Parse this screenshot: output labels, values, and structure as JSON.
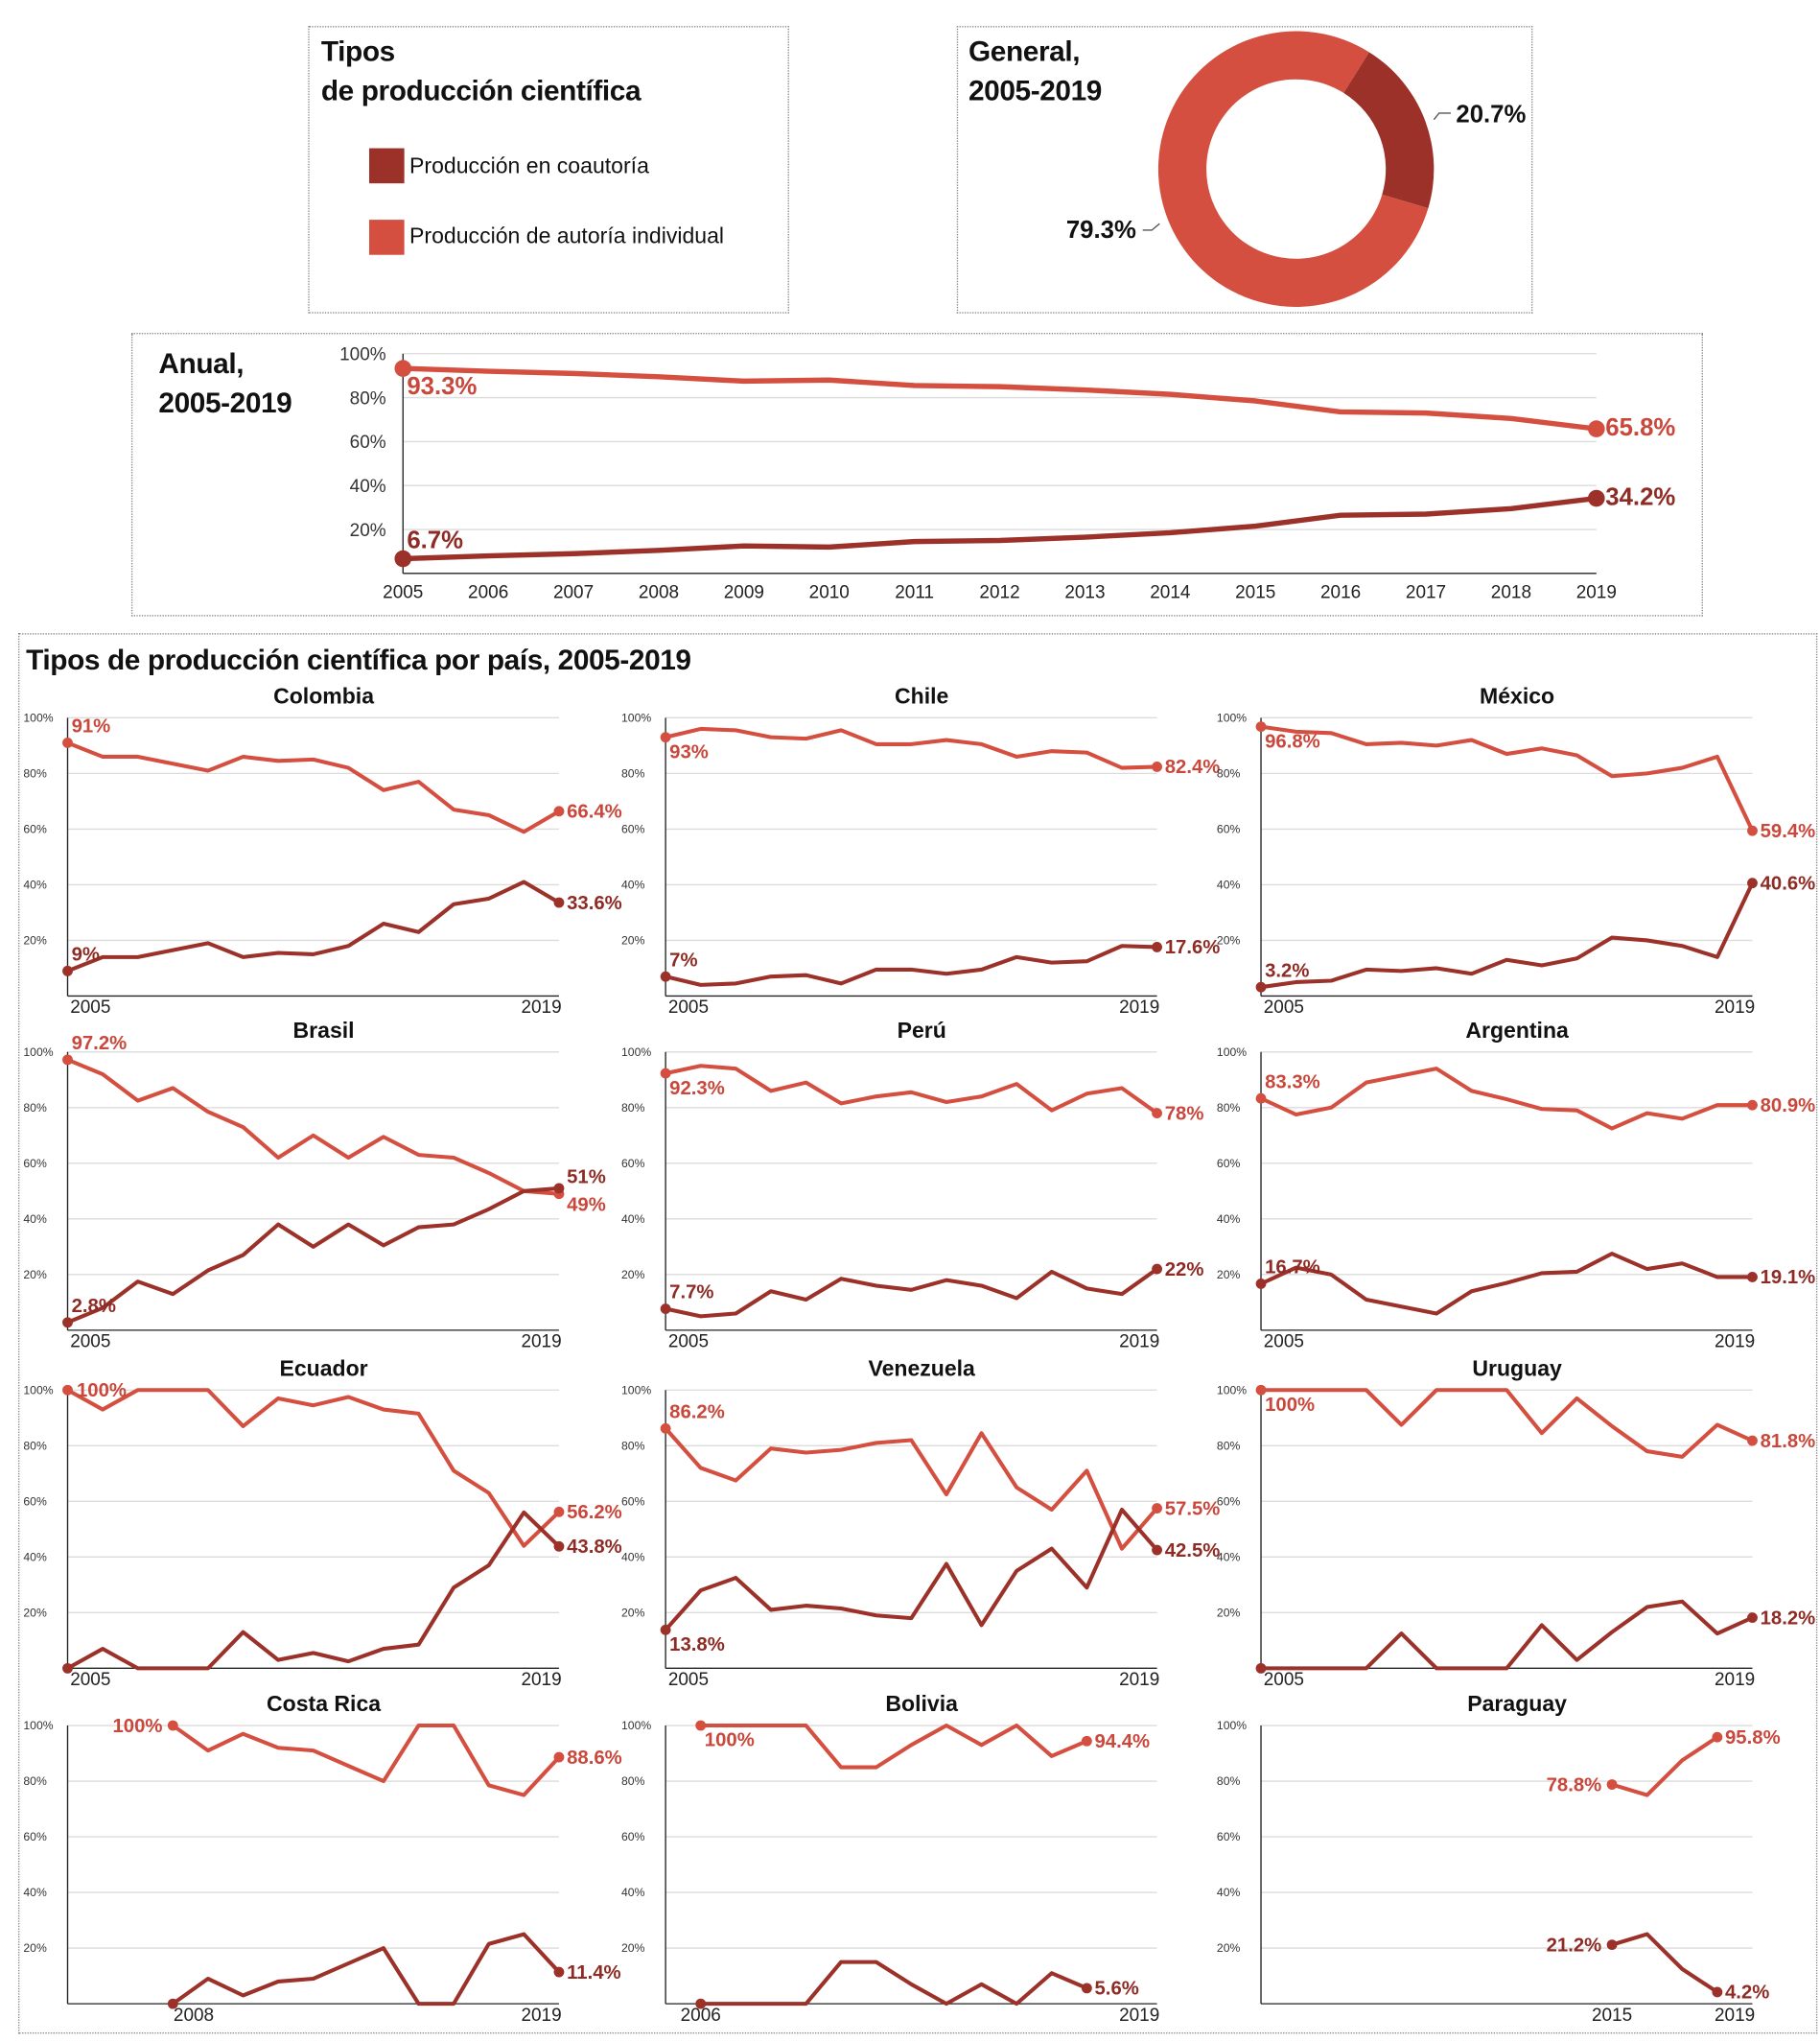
{
  "colors": {
    "coauthor": "#9b3129",
    "individual": "#d44f3f",
    "coauthor_label": "#8e2b24",
    "individual_label": "#c9473b"
  },
  "legend": {
    "title_line1": "Tipos",
    "title_line2": "de producción científica",
    "items": [
      {
        "label": "Producción en coautoría",
        "color": "#9b3129"
      },
      {
        "label": "Producción de autoría individual",
        "color": "#d44f3f"
      }
    ]
  },
  "general": {
    "title_line1": "General,",
    "title_line2": "2005-2019"
  },
  "anual": {
    "title_line1": "Anual,",
    "title_line2": "2005-2019"
  },
  "countries_title": "Tipos de producción científica por país, 2005-2019",
  "chart_data": [
    {
      "type": "pie",
      "title": "General, 2005-2019",
      "slices": [
        {
          "name": "Producción en coautoría",
          "value": 20.7,
          "label": "20.7%"
        },
        {
          "name": "Producción de autoría individual",
          "value": 79.3,
          "label": "79.3%"
        }
      ]
    },
    {
      "type": "line",
      "title": "Anual, 2005-2019",
      "x": [
        2005,
        2006,
        2007,
        2008,
        2009,
        2010,
        2011,
        2012,
        2013,
        2014,
        2015,
        2016,
        2017,
        2018,
        2019
      ],
      "x_tick_labels": [
        "2005",
        "2006",
        "2007",
        "2008",
        "2009",
        "2010",
        "2011",
        "2012",
        "2013",
        "2014",
        "2015",
        "2016",
        "2017",
        "2018",
        "2019"
      ],
      "y_tick_labels": [
        "20%",
        "40%",
        "60%",
        "80%",
        "100%"
      ],
      "ylim": [
        0,
        100
      ],
      "grid": true,
      "series": [
        {
          "name": "Producción de autoría individual",
          "values": [
            93.3,
            92,
            91,
            89.5,
            87.5,
            88,
            85.5,
            85,
            83.5,
            81.5,
            78.5,
            73.5,
            73,
            70.5,
            65.8
          ],
          "start_label": "93.3%",
          "end_label": "65.8%"
        },
        {
          "name": "Producción en coautoría",
          "values": [
            6.7,
            8,
            9,
            10.5,
            12.5,
            12,
            14.5,
            15,
            16.5,
            18.5,
            21.5,
            26.5,
            27,
            29.5,
            34.2
          ],
          "start_label": "6.7%",
          "end_label": "34.2%"
        }
      ]
    },
    {
      "type": "line",
      "title": "Colombia",
      "x": [
        2005,
        2006,
        2007,
        2008,
        2009,
        2010,
        2011,
        2012,
        2013,
        2014,
        2015,
        2016,
        2017,
        2018,
        2019
      ],
      "x_tick_labels": [
        "2005",
        "2019"
      ],
      "y_tick_labels": [
        "20%",
        "40%",
        "60%",
        "80%",
        "100%"
      ],
      "ylim": [
        0,
        100
      ],
      "series": [
        {
          "name": "Producción de autoría individual",
          "values": [
            91,
            86,
            86,
            83.5,
            81,
            86,
            84.5,
            85,
            82,
            74,
            77,
            67,
            65,
            59,
            66.4
          ],
          "start_label": "91%",
          "end_label": "66.4%"
        },
        {
          "name": "Producción en coautoría",
          "values": [
            9,
            14,
            14,
            16.5,
            19,
            14,
            15.5,
            15,
            18,
            26,
            23,
            33,
            35,
            41,
            33.6
          ],
          "start_label": "9%",
          "end_label": "33.6%"
        }
      ]
    },
    {
      "type": "line",
      "title": "Chile",
      "x": [
        2005,
        2006,
        2007,
        2008,
        2009,
        2010,
        2011,
        2012,
        2013,
        2014,
        2015,
        2016,
        2017,
        2018,
        2019
      ],
      "x_tick_labels": [
        "2005",
        "2019"
      ],
      "y_tick_labels": [
        "20%",
        "40%",
        "60%",
        "80%",
        "100%"
      ],
      "ylim": [
        0,
        100
      ],
      "series": [
        {
          "name": "Producción de autoría individual",
          "values": [
            93,
            96,
            95.5,
            93,
            92.5,
            95.5,
            90.5,
            90.5,
            92,
            90.5,
            86,
            88,
            87.5,
            82,
            82.4
          ],
          "start_label": "93%",
          "end_label": "82.4%"
        },
        {
          "name": "Producción en coautoría",
          "values": [
            7,
            4,
            4.5,
            7,
            7.5,
            4.5,
            9.5,
            9.5,
            8,
            9.5,
            14,
            12,
            12.5,
            18,
            17.6
          ],
          "start_label": "7%",
          "end_label": "17.6%"
        }
      ]
    },
    {
      "type": "line",
      "title": "México",
      "x": [
        2005,
        2006,
        2007,
        2008,
        2009,
        2010,
        2011,
        2012,
        2013,
        2014,
        2015,
        2016,
        2017,
        2018,
        2019
      ],
      "x_tick_labels": [
        "2005",
        "2019"
      ],
      "y_tick_labels": [
        "20%",
        "40%",
        "60%",
        "80%",
        "100%"
      ],
      "ylim": [
        0,
        100
      ],
      "series": [
        {
          "name": "Producción de autoría individual",
          "values": [
            96.8,
            95,
            94.5,
            90.5,
            91,
            90,
            92,
            87,
            89,
            86.5,
            79,
            80,
            82,
            86,
            59.4
          ],
          "start_label": "96.8%",
          "end_label": "59.4%"
        },
        {
          "name": "Producción en coautoría",
          "values": [
            3.2,
            5,
            5.5,
            9.5,
            9,
            10,
            8,
            13,
            11,
            13.5,
            21,
            20,
            18,
            14,
            40.6
          ],
          "start_label": "3.2%",
          "end_label": "40.6%"
        }
      ]
    },
    {
      "type": "line",
      "title": "Brasil",
      "x": [
        2005,
        2006,
        2007,
        2008,
        2009,
        2010,
        2011,
        2012,
        2013,
        2014,
        2015,
        2016,
        2017,
        2018,
        2019
      ],
      "x_tick_labels": [
        "2005",
        "2019"
      ],
      "y_tick_labels": [
        "20%",
        "40%",
        "60%",
        "80%",
        "100%"
      ],
      "ylim": [
        0,
        100
      ],
      "series": [
        {
          "name": "Producción de autoría individual",
          "values": [
            97.2,
            92,
            82.5,
            87,
            78.5,
            73,
            62,
            70,
            62,
            69.5,
            63,
            62,
            56.5,
            50,
            49
          ],
          "start_label": "97.2%",
          "end_label": "49%"
        },
        {
          "name": "Producción en coautoría",
          "values": [
            2.8,
            8,
            17.5,
            13,
            21.5,
            27,
            38,
            30,
            38,
            30.5,
            37,
            38,
            43.5,
            50,
            51
          ],
          "start_label": "2.8%",
          "end_label": "51%"
        }
      ]
    },
    {
      "type": "line",
      "title": "Perú",
      "x": [
        2005,
        2006,
        2007,
        2008,
        2009,
        2010,
        2011,
        2012,
        2013,
        2014,
        2015,
        2016,
        2017,
        2018,
        2019
      ],
      "x_tick_labels": [
        "2005",
        "2019"
      ],
      "y_tick_labels": [
        "20%",
        "40%",
        "60%",
        "80%",
        "100%"
      ],
      "ylim": [
        0,
        100
      ],
      "series": [
        {
          "name": "Producción de autoría individual",
          "values": [
            92.3,
            95,
            94,
            86,
            89,
            81.5,
            84,
            85.5,
            82,
            84,
            88.5,
            79,
            85,
            87,
            78
          ],
          "start_label": "92.3%",
          "end_label": "78%"
        },
        {
          "name": "Producción en coautoría",
          "values": [
            7.7,
            5,
            6,
            14,
            11,
            18.5,
            16,
            14.5,
            18,
            16,
            11.5,
            21,
            15,
            13,
            22
          ],
          "start_label": "7.7%",
          "end_label": "22%"
        }
      ]
    },
    {
      "type": "line",
      "title": "Argentina",
      "x": [
        2005,
        2006,
        2007,
        2008,
        2009,
        2010,
        2011,
        2012,
        2013,
        2014,
        2015,
        2016,
        2017,
        2018,
        2019
      ],
      "x_tick_labels": [
        "2005",
        "2019"
      ],
      "y_tick_labels": [
        "20%",
        "40%",
        "60%",
        "80%",
        "100%"
      ],
      "ylim": [
        0,
        100
      ],
      "series": [
        {
          "name": "Producción de autoría individual",
          "values": [
            83.3,
            77.5,
            80,
            89,
            91.5,
            94,
            86,
            83,
            79.5,
            79,
            72.5,
            78,
            76,
            80.9,
            80.9
          ],
          "start_label": "83.3%",
          "end_label": "80.9%"
        },
        {
          "name": "Producción en coautoría",
          "values": [
            16.7,
            22.5,
            20,
            11,
            8.5,
            6,
            14,
            17,
            20.5,
            21,
            27.5,
            22,
            24,
            19.1,
            19.1
          ],
          "start_label": "16.7%",
          "end_label": "19.1%"
        }
      ]
    },
    {
      "type": "line",
      "title": "Ecuador",
      "x": [
        2005,
        2006,
        2007,
        2008,
        2009,
        2010,
        2011,
        2012,
        2013,
        2014,
        2015,
        2016,
        2017,
        2018,
        2019
      ],
      "x_tick_labels": [
        "2005",
        "2019"
      ],
      "y_tick_labels": [
        "20%",
        "40%",
        "60%",
        "80%",
        "100%"
      ],
      "ylim": [
        0,
        100
      ],
      "series": [
        {
          "name": "Producción de autoría individual",
          "values": [
            100,
            93,
            100,
            100,
            100,
            87,
            97,
            94.5,
            97.5,
            93,
            91.5,
            71,
            63,
            44,
            56.2
          ],
          "start_label": "100%",
          "end_label": "56.2%"
        },
        {
          "name": "Producción en coautoría",
          "values": [
            0,
            7,
            0,
            0,
            0,
            13,
            3,
            5.5,
            2.5,
            7,
            8.5,
            29,
            37,
            56,
            43.8
          ],
          "end_label": "43.8%"
        }
      ]
    },
    {
      "type": "line",
      "title": "Venezuela",
      "x": [
        2005,
        2006,
        2007,
        2008,
        2009,
        2010,
        2011,
        2012,
        2013,
        2014,
        2015,
        2016,
        2017,
        2018,
        2019
      ],
      "x_tick_labels": [
        "2005",
        "2019"
      ],
      "y_tick_labels": [
        "20%",
        "40%",
        "60%",
        "80%",
        "100%"
      ],
      "ylim": [
        0,
        100
      ],
      "series": [
        {
          "name": "Producción de autoría individual",
          "values": [
            86.2,
            72,
            67.5,
            79,
            77.5,
            78.5,
            81,
            82,
            62.5,
            84.5,
            65,
            57,
            71,
            43,
            57.5
          ],
          "start_label": "86.2%",
          "end_label": "57.5%"
        },
        {
          "name": "Producción en coautoría",
          "values": [
            13.8,
            28,
            32.5,
            21,
            22.5,
            21.5,
            19,
            18,
            37.5,
            15.5,
            35,
            43,
            29,
            57,
            42.5
          ],
          "start_label": "13.8%",
          "end_label": "42.5%"
        }
      ]
    },
    {
      "type": "line",
      "title": "Uruguay",
      "x": [
        2005,
        2006,
        2007,
        2008,
        2009,
        2010,
        2011,
        2012,
        2013,
        2014,
        2015,
        2016,
        2017,
        2018,
        2019
      ],
      "x_tick_labels": [
        "2005",
        "2019"
      ],
      "y_tick_labels": [
        "20%",
        "40%",
        "60%",
        "80%",
        "100%"
      ],
      "ylim": [
        0,
        100
      ],
      "series": [
        {
          "name": "Producción de autoría individual",
          "values": [
            100,
            100,
            100,
            100,
            87.5,
            100,
            100,
            100,
            84.5,
            97,
            87,
            78,
            76,
            87.5,
            81.8
          ],
          "start_label": "100%",
          "end_label": "81.8%"
        },
        {
          "name": "Producción en coautoría",
          "values": [
            0,
            0,
            0,
            0,
            12.5,
            0,
            0,
            0,
            15.5,
            3,
            13,
            22,
            24,
            12.5,
            18.2
          ],
          "end_label": "18.2%"
        }
      ]
    },
    {
      "type": "line",
      "title": "Costa Rica",
      "x": [
        2008,
        2009,
        2010,
        2011,
        2012,
        2013,
        2014,
        2015,
        2016,
        2017,
        2018,
        2019
      ],
      "x_tick_labels": [
        "2008",
        "2019"
      ],
      "y_tick_labels": [
        "20%",
        "40%",
        "60%",
        "80%",
        "100%"
      ],
      "ylim": [
        0,
        100
      ],
      "series": [
        {
          "name": "Producción de autoría individual",
          "values": [
            100,
            91,
            97,
            92,
            91,
            85.5,
            80,
            100,
            100,
            78.5,
            75,
            88.6
          ],
          "start_label": "100%",
          "end_label": "88.6%"
        },
        {
          "name": "Producción en coautoría",
          "values": [
            0,
            9,
            3,
            8,
            9,
            14.5,
            20,
            0,
            0,
            21.5,
            25,
            11.4
          ],
          "end_label": "11.4%"
        }
      ]
    },
    {
      "type": "line",
      "title": "Bolivia",
      "x": [
        2006,
        2007,
        2008,
        2009,
        2010,
        2011,
        2012,
        2013,
        2014,
        2015,
        2016,
        2017
      ],
      "x_tick_labels": [
        "2006",
        "2019"
      ],
      "y_tick_labels": [
        "20%",
        "40%",
        "60%",
        "80%",
        "100%"
      ],
      "ylim": [
        0,
        100
      ],
      "series": [
        {
          "name": "Producción de autoría individual",
          "values": [
            100,
            100,
            100,
            100,
            85,
            85,
            93,
            100,
            93,
            100,
            89,
            94.4
          ],
          "start_label": "100%",
          "end_label": "94.4%"
        },
        {
          "name": "Producción en coautoría",
          "values": [
            0,
            0,
            0,
            0,
            15,
            15,
            7,
            0,
            7,
            0,
            11,
            5.6
          ],
          "end_label": "5.6%"
        }
      ]
    },
    {
      "type": "line",
      "title": "Paraguay",
      "x": [
        2015,
        2016,
        2017,
        2018
      ],
      "x_tick_labels": [
        "2015",
        "2019"
      ],
      "y_tick_labels": [
        "20%",
        "40%",
        "60%",
        "80%",
        "100%"
      ],
      "ylim": [
        0,
        100
      ],
      "series": [
        {
          "name": "Producción de autoría individual",
          "values": [
            78.8,
            75,
            87.5,
            95.8
          ],
          "start_label": "78.8%",
          "end_label": "95.8%"
        },
        {
          "name": "Producción en coautoría",
          "values": [
            21.2,
            25,
            12.5,
            4.2
          ],
          "start_label": "21.2%",
          "end_label": "4.2%"
        }
      ]
    }
  ]
}
